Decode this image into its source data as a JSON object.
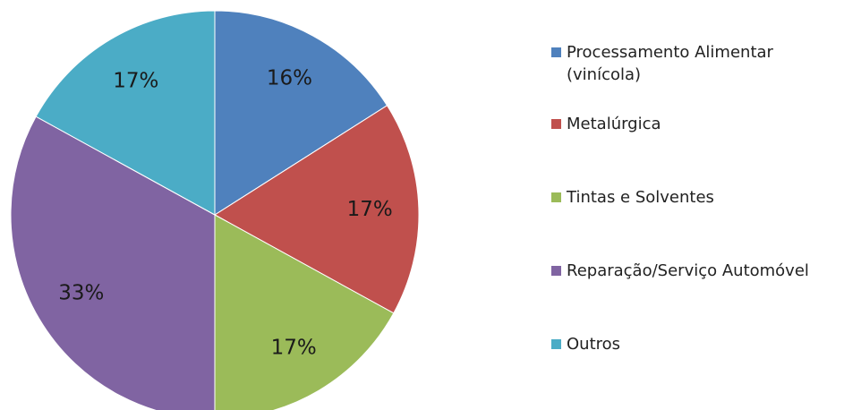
{
  "chart_data": {
    "type": "pie",
    "categories": [
      "Processamento Alimentar (vinícola)",
      "Metalúrgica",
      "Tintas e Solventes",
      "Reparação/Serviço Automóvel",
      "Outros"
    ],
    "values": [
      16,
      17,
      17,
      33,
      17
    ],
    "value_labels": [
      "16%",
      "17%",
      "17%",
      "33%",
      "17%"
    ],
    "colors": [
      "#4f81bd",
      "#c0504d",
      "#9bbb59",
      "#8064a2",
      "#4bacc6"
    ],
    "legend": "right"
  }
}
